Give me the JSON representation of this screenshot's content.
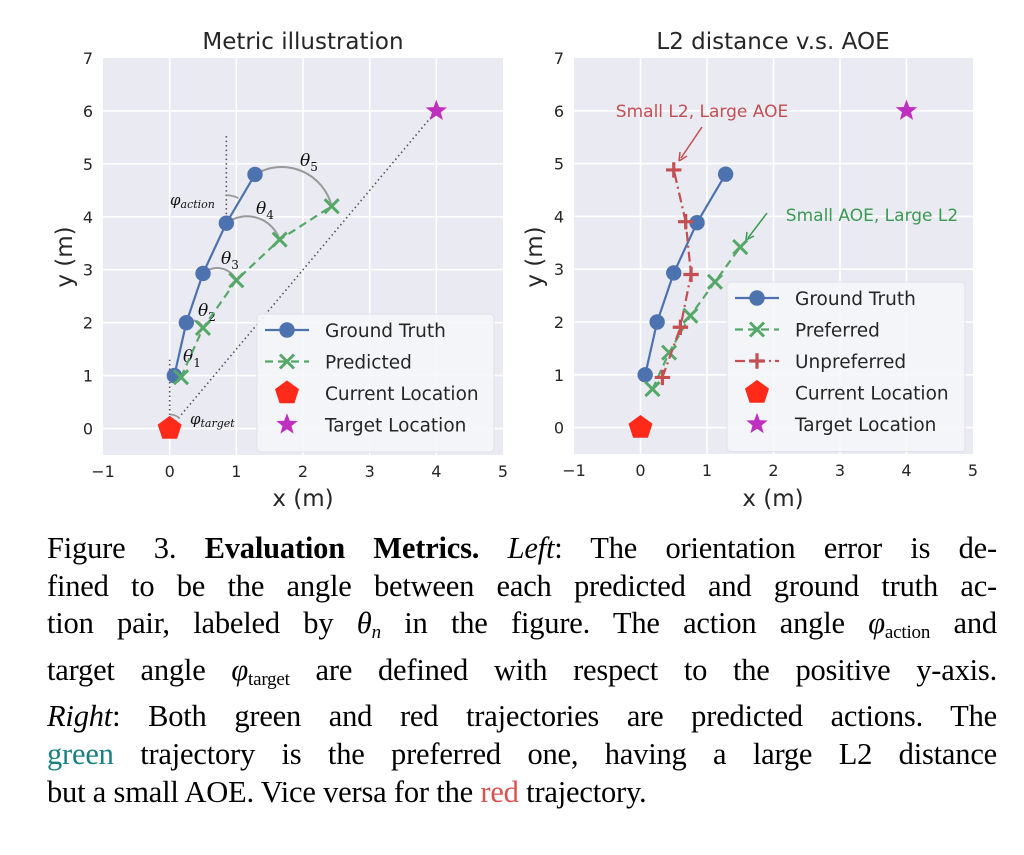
{
  "chart_data": [
    {
      "type": "line",
      "title": "Metric illustration",
      "xlabel": "x (m)",
      "ylabel": "y (m)",
      "xlim": [
        -1,
        5
      ],
      "ylim": [
        -0.5,
        7
      ],
      "xticks": [
        "−1",
        "0",
        "1",
        "2",
        "3",
        "4",
        "5"
      ],
      "yticks": [
        "0",
        "1",
        "2",
        "3",
        "4",
        "5",
        "6",
        "7"
      ],
      "grid": true,
      "legend_position": "lower-right",
      "series": [
        {
          "name": "Ground Truth",
          "color": "#4c72b0",
          "style": "solid",
          "marker": "circle",
          "x": [
            0.07,
            0.25,
            0.5,
            0.85,
            1.28
          ],
          "y": [
            1.0,
            2.0,
            2.93,
            3.88,
            4.8
          ]
        },
        {
          "name": "Predicted",
          "color": "#55a868",
          "style": "dashed",
          "marker": "x",
          "x": [
            0.17,
            0.5,
            1.0,
            1.65,
            2.43
          ],
          "y": [
            0.97,
            1.9,
            2.8,
            3.57,
            4.2
          ]
        },
        {
          "name": "Current Location",
          "color": "#ff2a1a",
          "marker": "pentagon",
          "x": [
            0
          ],
          "y": [
            0
          ]
        },
        {
          "name": "Target Location",
          "color": "#c030c0",
          "marker": "star",
          "x": [
            4
          ],
          "y": [
            6
          ]
        }
      ],
      "annotations": {
        "theta": [
          "θ",
          "1",
          "2",
          "3",
          "4",
          "5"
        ],
        "phi_action": "φ",
        "phi_action_sub": "action",
        "phi_target": "φ",
        "phi_target_sub": "target"
      }
    },
    {
      "type": "line",
      "title": "L2 distance v.s. AOE",
      "xlabel": "x (m)",
      "ylabel": "y (m)",
      "xlim": [
        -1,
        5
      ],
      "ylim": [
        -0.5,
        7
      ],
      "xticks": [
        "−1",
        "0",
        "1",
        "2",
        "3",
        "4",
        "5"
      ],
      "yticks": [
        "0",
        "1",
        "2",
        "3",
        "4",
        "5",
        "6",
        "7"
      ],
      "grid": true,
      "legend_position": "lower-right",
      "series": [
        {
          "name": "Ground Truth",
          "color": "#4c72b0",
          "style": "solid",
          "marker": "circle",
          "x": [
            0.07,
            0.25,
            0.5,
            0.85,
            1.28
          ],
          "y": [
            1.0,
            2.0,
            2.93,
            3.88,
            4.8
          ]
        },
        {
          "name": "Preferred",
          "color": "#55a868",
          "style": "dashed",
          "marker": "x",
          "x": [
            0.18,
            0.43,
            0.75,
            1.12,
            1.5
          ],
          "y": [
            0.73,
            1.42,
            2.12,
            2.76,
            3.42
          ]
        },
        {
          "name": "Unpreferred",
          "color": "#c44e52",
          "style": "dashdot",
          "marker": "plus",
          "x": [
            0.33,
            0.6,
            0.76,
            0.68,
            0.5
          ],
          "y": [
            0.95,
            1.9,
            2.9,
            3.9,
            4.88
          ]
        },
        {
          "name": "Current Location",
          "color": "#ff2a1a",
          "marker": "pentagon",
          "x": [
            0
          ],
          "y": [
            0
          ]
        },
        {
          "name": "Target Location",
          "color": "#c030c0",
          "marker": "star",
          "x": [
            4
          ],
          "y": [
            6
          ]
        }
      ],
      "annotations": {
        "red_note": "Small L2, Large AOE",
        "green_note": "Small AOE, Large L2"
      }
    }
  ],
  "caption": {
    "fig_label": "Figure 3.",
    "bold_title": "Evaluation Metrics.",
    "left_label": "Left",
    "line1_rest": ": The orientation error is de-",
    "line2": "fined to be the angle between each predicted and ground truth ac-",
    "line3_a": "tion pair, labeled by ",
    "theta_n": "θ",
    "theta_n_sub": "n",
    "line3_b": " in the figure. The action angle ",
    "phi": "φ",
    "action_sub": "action",
    "line3_c": " and",
    "line4_a": "target angle ",
    "target_sub": "target",
    "line4_b": " are defined with respect to the positive y-axis.",
    "right_label": "Right",
    "line5_rest": ": Both green and red trajectories are predicted actions. The",
    "green_word": "green",
    "line6_rest": " trajectory is the preferred one, having a large L2 distance",
    "line7_a": "but a small AOE. Vice versa for the ",
    "red_word": "red",
    "line7_b": " trajectory."
  }
}
